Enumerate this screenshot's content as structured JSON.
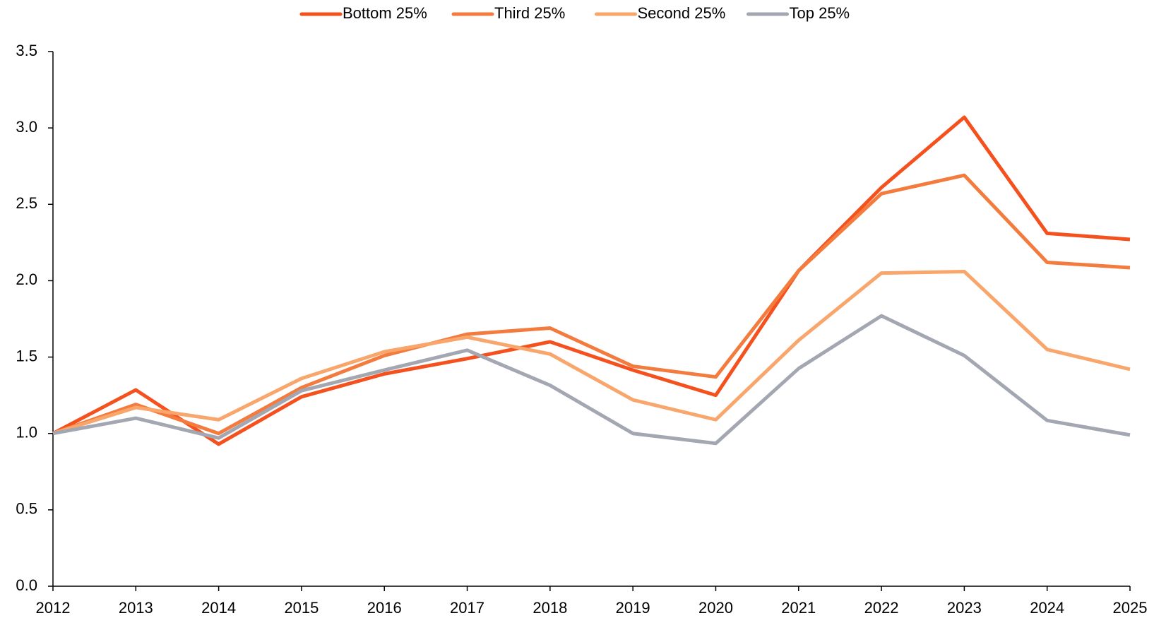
{
  "chart_data": {
    "type": "line",
    "categories": [
      "2012",
      "2013",
      "2014",
      "2015",
      "2016",
      "2017",
      "2018",
      "2019",
      "2020",
      "2021",
      "2022",
      "2023",
      "2024",
      "2025"
    ],
    "series": [
      {
        "name": "Bottom 25%",
        "color": "#f4511e",
        "values": [
          1.0,
          1.285,
          0.93,
          1.24,
          1.39,
          1.49,
          1.6,
          1.415,
          1.25,
          2.065,
          2.61,
          3.07,
          2.31,
          2.27
        ]
      },
      {
        "name": "Third 25%",
        "color": "#f47b3e",
        "values": [
          1.0,
          1.19,
          1.0,
          1.3,
          1.51,
          1.65,
          1.69,
          1.44,
          1.37,
          2.065,
          2.57,
          2.69,
          2.12,
          2.085
        ]
      },
      {
        "name": "Second 25%",
        "color": "#f9a66c",
        "values": [
          1.0,
          1.17,
          1.09,
          1.36,
          1.535,
          1.63,
          1.52,
          1.22,
          1.09,
          1.61,
          2.05,
          2.06,
          1.55,
          1.42
        ]
      },
      {
        "name": "Top 25%",
        "color": "#a3a7b1",
        "values": [
          1.0,
          1.1,
          0.97,
          1.28,
          1.415,
          1.545,
          1.315,
          1.0,
          0.935,
          1.425,
          1.77,
          1.51,
          1.085,
          0.99
        ]
      }
    ],
    "ylim": [
      0,
      3.5
    ],
    "yticks": [
      {
        "value": 0,
        "label": "0.0"
      },
      0.5,
      {
        "value": 1,
        "label": "1.0"
      },
      1.5,
      {
        "value": 2,
        "label": "2.0"
      },
      2.5,
      {
        "value": 3,
        "label": "3.0"
      },
      3.5
    ],
    "legend": "top",
    "grid": false
  }
}
